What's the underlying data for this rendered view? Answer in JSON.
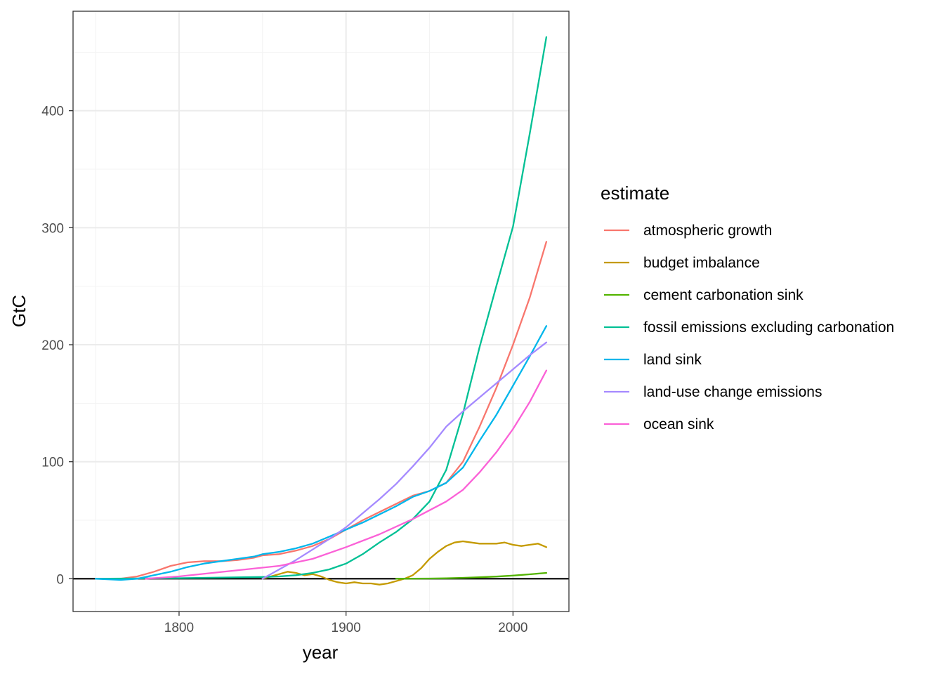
{
  "chart_data": {
    "type": "line",
    "title": "",
    "xlabel": "year",
    "ylabel": "GtC",
    "xlim": [
      1736.5,
      2033.5
    ],
    "ylim": [
      -28,
      485
    ],
    "xticks": [
      1800,
      1900,
      2000
    ],
    "yticks": [
      0,
      100,
      200,
      300,
      400
    ],
    "hline": 0,
    "grid": true,
    "legend": {
      "title": "estimate",
      "position": "right"
    },
    "series": [
      {
        "name": "atmospheric growth",
        "color": "#F8766D",
        "points": [
          [
            1750,
            0
          ],
          [
            1765,
            0
          ],
          [
            1775,
            2
          ],
          [
            1785,
            6
          ],
          [
            1795,
            11
          ],
          [
            1805,
            14
          ],
          [
            1815,
            15
          ],
          [
            1825,
            15
          ],
          [
            1835,
            16
          ],
          [
            1845,
            18
          ],
          [
            1850,
            20
          ],
          [
            1860,
            21
          ],
          [
            1870,
            24
          ],
          [
            1880,
            28
          ],
          [
            1890,
            34
          ],
          [
            1900,
            42
          ],
          [
            1910,
            50
          ],
          [
            1920,
            57
          ],
          [
            1930,
            64
          ],
          [
            1940,
            71
          ],
          [
            1950,
            75
          ],
          [
            1960,
            82
          ],
          [
            1970,
            100
          ],
          [
            1980,
            130
          ],
          [
            1990,
            163
          ],
          [
            2000,
            200
          ],
          [
            2010,
            240
          ],
          [
            2020,
            288
          ]
        ]
      },
      {
        "name": "budget imbalance",
        "color": "#C49A00",
        "points": [
          [
            1850,
            0
          ],
          [
            1855,
            2
          ],
          [
            1860,
            4
          ],
          [
            1865,
            6
          ],
          [
            1870,
            5
          ],
          [
            1875,
            3
          ],
          [
            1880,
            4
          ],
          [
            1885,
            2
          ],
          [
            1890,
            -1
          ],
          [
            1895,
            -3
          ],
          [
            1900,
            -4
          ],
          [
            1905,
            -3
          ],
          [
            1910,
            -4
          ],
          [
            1915,
            -4
          ],
          [
            1920,
            -5
          ],
          [
            1925,
            -4
          ],
          [
            1930,
            -2
          ],
          [
            1935,
            0
          ],
          [
            1940,
            3
          ],
          [
            1945,
            9
          ],
          [
            1950,
            17
          ],
          [
            1955,
            23
          ],
          [
            1960,
            28
          ],
          [
            1965,
            31
          ],
          [
            1970,
            32
          ],
          [
            1975,
            31
          ],
          [
            1980,
            30
          ],
          [
            1985,
            30
          ],
          [
            1990,
            30
          ],
          [
            1995,
            31
          ],
          [
            2000,
            29
          ],
          [
            2005,
            28
          ],
          [
            2010,
            29
          ],
          [
            2015,
            30
          ],
          [
            2020,
            27
          ]
        ]
      },
      {
        "name": "cement carbonation sink",
        "color": "#53B400",
        "points": [
          [
            1930,
            0
          ],
          [
            1950,
            0.2
          ],
          [
            1960,
            0.4
          ],
          [
            1970,
            0.8
          ],
          [
            1980,
            1.3
          ],
          [
            1990,
            1.9
          ],
          [
            2000,
            2.7
          ],
          [
            2010,
            3.8
          ],
          [
            2020,
            5
          ]
        ]
      },
      {
        "name": "fossil emissions excluding carbonation",
        "color": "#00C094",
        "points": [
          [
            1750,
            0
          ],
          [
            1800,
            0.5
          ],
          [
            1850,
            1.5
          ],
          [
            1860,
            2
          ],
          [
            1870,
            3
          ],
          [
            1880,
            5
          ],
          [
            1890,
            8
          ],
          [
            1900,
            13
          ],
          [
            1910,
            21
          ],
          [
            1920,
            31
          ],
          [
            1930,
            40
          ],
          [
            1940,
            51
          ],
          [
            1950,
            66
          ],
          [
            1960,
            93
          ],
          [
            1970,
            141
          ],
          [
            1980,
            198
          ],
          [
            1990,
            250
          ],
          [
            2000,
            301
          ],
          [
            2010,
            380
          ],
          [
            2020,
            463
          ]
        ]
      },
      {
        "name": "land sink",
        "color": "#00B6EB",
        "points": [
          [
            1750,
            0
          ],
          [
            1765,
            -1
          ],
          [
            1775,
            0
          ],
          [
            1785,
            3
          ],
          [
            1795,
            6
          ],
          [
            1805,
            10
          ],
          [
            1815,
            13
          ],
          [
            1825,
            15
          ],
          [
            1835,
            17
          ],
          [
            1845,
            19
          ],
          [
            1850,
            21
          ],
          [
            1860,
            23
          ],
          [
            1870,
            26
          ],
          [
            1880,
            30
          ],
          [
            1890,
            36
          ],
          [
            1900,
            42
          ],
          [
            1910,
            48
          ],
          [
            1920,
            55
          ],
          [
            1930,
            62
          ],
          [
            1940,
            70
          ],
          [
            1950,
            75
          ],
          [
            1960,
            82
          ],
          [
            1970,
            95
          ],
          [
            1980,
            118
          ],
          [
            1990,
            140
          ],
          [
            2000,
            165
          ],
          [
            2010,
            190
          ],
          [
            2020,
            216
          ]
        ]
      },
      {
        "name": "land-use change emissions",
        "color": "#A58AFF",
        "points": [
          [
            1850,
            0
          ],
          [
            1860,
            8
          ],
          [
            1870,
            16
          ],
          [
            1880,
            25
          ],
          [
            1890,
            34
          ],
          [
            1900,
            44
          ],
          [
            1910,
            56
          ],
          [
            1920,
            68
          ],
          [
            1930,
            81
          ],
          [
            1940,
            96
          ],
          [
            1950,
            112
          ],
          [
            1960,
            130
          ],
          [
            1970,
            143
          ],
          [
            1980,
            155
          ],
          [
            1990,
            167
          ],
          [
            2000,
            179
          ],
          [
            2010,
            191
          ],
          [
            2020,
            202
          ]
        ]
      },
      {
        "name": "ocean sink",
        "color": "#FB61D7",
        "points": [
          [
            1780,
            0
          ],
          [
            1800,
            2
          ],
          [
            1820,
            5
          ],
          [
            1840,
            8
          ],
          [
            1860,
            11
          ],
          [
            1880,
            17
          ],
          [
            1900,
            27
          ],
          [
            1920,
            38
          ],
          [
            1940,
            51
          ],
          [
            1960,
            66
          ],
          [
            1970,
            76
          ],
          [
            1980,
            91
          ],
          [
            1990,
            108
          ],
          [
            2000,
            128
          ],
          [
            2010,
            151
          ],
          [
            2020,
            178
          ]
        ]
      }
    ]
  }
}
